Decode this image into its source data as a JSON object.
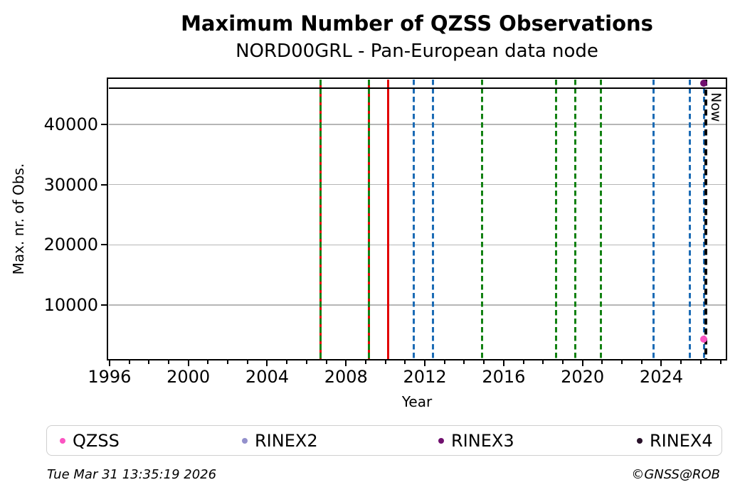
{
  "footer": {
    "timestamp": "Tue Mar 31 13:35:19 2026",
    "credit": "©GNSS@ROB"
  },
  "chart_data": {
    "type": "scatter",
    "title": "Maximum Number of QZSS Observations",
    "subtitle": "NORD00GRL - Pan-European data node",
    "xlabel": "Year",
    "ylabel": "Max. nr. of Obs.",
    "xlim": [
      1995.95,
      2027.25
    ],
    "ylim": [
      1100,
      47500
    ],
    "xticks": [
      1996,
      2000,
      2004,
      2008,
      2012,
      2016,
      2020,
      2024
    ],
    "yticks": [
      10000,
      20000,
      30000,
      40000
    ],
    "minor_tick_step_years": 1,
    "grid": "horizontal-major",
    "grid_color": "#b6b6b6",
    "hlines": [
      {
        "y": 46000,
        "color": "#000000",
        "style": "solid"
      }
    ],
    "vlines": [
      {
        "x": 2006.7,
        "color": "#128112",
        "style": "dashed",
        "under_color": "#e10000"
      },
      {
        "x": 2009.15,
        "color": "#128112",
        "style": "dashed",
        "under_color": "#e10000"
      },
      {
        "x": 2010.15,
        "color": "#e10000",
        "style": "solid"
      },
      {
        "x": 2011.45,
        "color": "#1b6bb5",
        "style": "dashed"
      },
      {
        "x": 2012.4,
        "color": "#1b6bb5",
        "style": "dashed"
      },
      {
        "x": 2014.9,
        "color": "#128112",
        "style": "dashed"
      },
      {
        "x": 2018.65,
        "color": "#128112",
        "style": "dashed"
      },
      {
        "x": 2019.65,
        "color": "#128112",
        "style": "dashed"
      },
      {
        "x": 2020.95,
        "color": "#128112",
        "style": "dashed"
      },
      {
        "x": 2023.6,
        "color": "#1b6bb5",
        "style": "dashed"
      },
      {
        "x": 2025.45,
        "color": "#1b6bb5",
        "style": "dashed"
      },
      {
        "x": 2026.15,
        "color": "#1b6bb5",
        "style": "dashed"
      }
    ],
    "now_line": {
      "x": 2026.25,
      "label": "Now",
      "color": "#000000",
      "style": "dashed"
    },
    "points": [
      {
        "series": "QZSS",
        "x": 2026.15,
        "y": 4400,
        "color": "#fb54c2"
      },
      {
        "series": "RINEX3",
        "x": 2026.15,
        "y": 46800,
        "color": "#70106e"
      }
    ],
    "legend": {
      "position": "bottom",
      "entries": [
        {
          "label": "QZSS",
          "color": "#fb54c2"
        },
        {
          "label": "RINEX2",
          "color": "#9390cc"
        },
        {
          "label": "RINEX3",
          "color": "#70106e"
        },
        {
          "label": "RINEX4",
          "color": "#281129"
        }
      ]
    }
  }
}
